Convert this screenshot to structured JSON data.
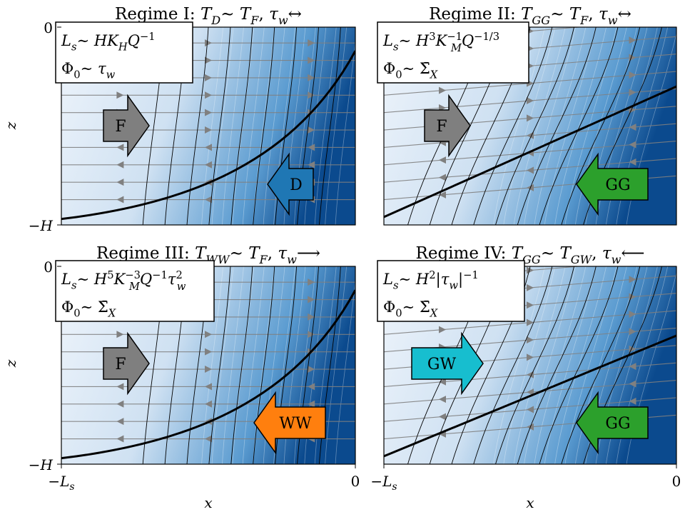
{
  "figure": {
    "ylabel": "z",
    "xlabel": "x",
    "ytick_top": "0",
    "ytick_bottom": "−H",
    "xtick_left": "−L",
    "xtick_left_sub": "s",
    "xtick_right": "0"
  },
  "colors": {
    "shade_light": "#eef4fb",
    "shade_dark": "#0b4a8e",
    "streamline": "#808080",
    "contour": "#000000",
    "interface": "#000000",
    "F": "#7f7f7f",
    "D": "#1f77b4",
    "GG": "#2ca02c",
    "WW": "#ff7f0e",
    "GW": "#17becf"
  },
  "panels": [
    {
      "title": "Regime I: T_D ∼ T_F, τ_w ↔",
      "title_parts": [
        {
          "t": "Regime I: "
        },
        {
          "t": "T",
          "i": true
        },
        {
          "t": "D",
          "sub": true,
          "i": true
        },
        {
          "t": " ∼ "
        },
        {
          "t": "T",
          "i": true
        },
        {
          "t": "F",
          "sub": true,
          "i": true
        },
        {
          "t": ", "
        },
        {
          "t": "τ",
          "i": true
        },
        {
          "t": "w",
          "sub": true,
          "i": true
        },
        {
          "t": " ↔"
        }
      ],
      "box_line1": "L_s ∼ H K_H Q^{-1}",
      "box_line1_parts": [
        {
          "t": "L",
          "i": true
        },
        {
          "t": "s",
          "sub": true,
          "i": true
        },
        {
          "t": " ∼ "
        },
        {
          "t": "HK",
          "i": true
        },
        {
          "t": "H",
          "sub": true,
          "i": true
        },
        {
          "t": "Q",
          "i": true
        },
        {
          "t": "−1",
          "sup": true
        }
      ],
      "box_line2": "Φ_0 ∼ τ_w",
      "box_line2_parts": [
        {
          "t": "Φ"
        },
        {
          "t": "0",
          "sub": true
        },
        {
          "t": " ∼ "
        },
        {
          "t": "τ",
          "i": true
        },
        {
          "t": "w",
          "sub": true,
          "i": true
        }
      ],
      "arrows": [
        {
          "label": "F",
          "dir": "right",
          "color": "F"
        },
        {
          "label": "D",
          "dir": "left",
          "color": "D"
        }
      ],
      "interface_depth_left": 0.97,
      "interface_depth_right": 0.12
    },
    {
      "title": "Regime II: T_GG ∼ T_F, τ_w ↔",
      "title_parts": [
        {
          "t": "Regime II: "
        },
        {
          "t": "T",
          "i": true
        },
        {
          "t": "GG",
          "sub": true,
          "i": true
        },
        {
          "t": " ∼ "
        },
        {
          "t": "T",
          "i": true
        },
        {
          "t": "F",
          "sub": true,
          "i": true
        },
        {
          "t": ", "
        },
        {
          "t": "τ",
          "i": true
        },
        {
          "t": "w",
          "sub": true,
          "i": true
        },
        {
          "t": " ↔"
        }
      ],
      "box_line1": "L_s ∼ H^3 K_M^{-1} Q^{-1/3}",
      "box_line1_parts": [
        {
          "t": "L",
          "i": true
        },
        {
          "t": "s",
          "sub": true,
          "i": true
        },
        {
          "t": " ∼ "
        },
        {
          "t": "H",
          "i": true
        },
        {
          "t": "3",
          "sup": true
        },
        {
          "t": "K",
          "i": true
        },
        {
          "t": "−1",
          "sup": true,
          "under": "M"
        },
        {
          "t": "Q",
          "i": true
        },
        {
          "t": "−1/3",
          "sup": true
        }
      ],
      "box_line2": "Φ_0 ∼ Σ̄_X",
      "box_line2_parts": [
        {
          "t": "Φ"
        },
        {
          "t": "0",
          "sub": true
        },
        {
          "t": " ∼ "
        },
        {
          "t": "Σ̄"
        },
        {
          "t": "X",
          "sub": true,
          "i": true
        }
      ],
      "arrows": [
        {
          "label": "F",
          "dir": "right",
          "color": "F"
        },
        {
          "label": "GG",
          "dir": "left",
          "color": "GG"
        }
      ],
      "interface_depth_left": 0.96,
      "interface_depth_right": 0.3
    },
    {
      "title": "Regime III: T_WW ∼ T_F, τ_w ⟶",
      "title_parts": [
        {
          "t": "Regime III: "
        },
        {
          "t": "T",
          "i": true
        },
        {
          "t": "WW",
          "sub": true,
          "i": true
        },
        {
          "t": " ∼ "
        },
        {
          "t": "T",
          "i": true
        },
        {
          "t": "F",
          "sub": true,
          "i": true
        },
        {
          "t": ", "
        },
        {
          "t": "τ",
          "i": true
        },
        {
          "t": "w",
          "sub": true,
          "i": true
        },
        {
          "t": " ⟶"
        }
      ],
      "box_line1": "L_s ∼ H^5 K_M^{-3} Q^{-1} τ_w^2",
      "box_line1_parts": [
        {
          "t": "L",
          "i": true
        },
        {
          "t": "s",
          "sub": true,
          "i": true
        },
        {
          "t": " ∼ "
        },
        {
          "t": "H",
          "i": true
        },
        {
          "t": "5",
          "sup": true
        },
        {
          "t": "K",
          "i": true
        },
        {
          "t": "−3",
          "sup": true,
          "under": "M"
        },
        {
          "t": "Q",
          "i": true
        },
        {
          "t": "−1",
          "sup": true
        },
        {
          "t": "τ",
          "i": true
        },
        {
          "t": "2",
          "sup": true,
          "under": "w"
        }
      ],
      "box_line2": "Φ_0 ∼ Σ̄_X",
      "box_line2_parts": [
        {
          "t": "Φ"
        },
        {
          "t": "0",
          "sub": true
        },
        {
          "t": " ∼ "
        },
        {
          "t": "Σ̄"
        },
        {
          "t": "X",
          "sub": true,
          "i": true
        }
      ],
      "arrows": [
        {
          "label": "F",
          "dir": "right",
          "color": "F"
        },
        {
          "label": "WW",
          "dir": "left",
          "color": "WW"
        }
      ],
      "interface_depth_left": 0.97,
      "interface_depth_right": 0.12
    },
    {
      "title": "Regime IV: T_GG ∼ T_GW, τ_w ⟵",
      "title_parts": [
        {
          "t": "Regime IV: "
        },
        {
          "t": "T",
          "i": true
        },
        {
          "t": "GG",
          "sub": true,
          "i": true
        },
        {
          "t": " ∼ "
        },
        {
          "t": "T",
          "i": true
        },
        {
          "t": "GW",
          "sub": true,
          "i": true
        },
        {
          "t": ", "
        },
        {
          "t": "τ",
          "i": true
        },
        {
          "t": "w",
          "sub": true,
          "i": true
        },
        {
          "t": " ⟵"
        }
      ],
      "box_line1": "L_s ∼ H^2 |τ_w|^{-1}",
      "box_line1_parts": [
        {
          "t": "L",
          "i": true
        },
        {
          "t": "s",
          "sub": true,
          "i": true
        },
        {
          "t": " ∼ "
        },
        {
          "t": "H",
          "i": true
        },
        {
          "t": "2",
          "sup": true
        },
        {
          "t": "|"
        },
        {
          "t": "τ",
          "i": true
        },
        {
          "t": "w",
          "sub": true,
          "i": true
        },
        {
          "t": "|"
        },
        {
          "t": "−1",
          "sup": true
        }
      ],
      "box_line2": "Φ_0 ∼ Σ̄_X",
      "box_line2_parts": [
        {
          "t": "Φ"
        },
        {
          "t": "0",
          "sub": true
        },
        {
          "t": " ∼ "
        },
        {
          "t": "Σ̄"
        },
        {
          "t": "X",
          "sub": true,
          "i": true
        }
      ],
      "arrows": [
        {
          "label": "GW",
          "dir": "right",
          "color": "GW"
        },
        {
          "label": "GG",
          "dir": "left",
          "color": "GG"
        }
      ],
      "interface_depth_left": 0.96,
      "interface_depth_right": 0.35
    }
  ],
  "chart_data": {
    "type": "heatmap",
    "panel_count": 4,
    "layout": "2x2",
    "x_axis": {
      "label": "x",
      "range": [
        "−L_s",
        "0"
      ]
    },
    "y_axis": {
      "label": "z",
      "range": [
        "−H",
        "0"
      ]
    },
    "interface_curves": [
      {
        "panel": "Regime I",
        "z_at_x_minus_Ls": 0.97,
        "z_at_x_0": 0.12,
        "unit": "fraction of H below surface"
      },
      {
        "panel": "Regime II",
        "z_at_x_minus_Ls": 0.96,
        "z_at_x_0": 0.3,
        "unit": "fraction of H below surface"
      },
      {
        "panel": "Regime III",
        "z_at_x_minus_Ls": 0.97,
        "z_at_x_0": 0.12,
        "unit": "fraction of H below surface"
      },
      {
        "panel": "Regime IV",
        "z_at_x_minus_Ls": 0.96,
        "z_at_x_0": 0.35,
        "unit": "fraction of H below surface"
      }
    ],
    "flux_arrows": [
      {
        "panel": "Regime I",
        "labels": [
          "F",
          "D"
        ]
      },
      {
        "panel": "Regime II",
        "labels": [
          "F",
          "GG"
        ]
      },
      {
        "panel": "Regime III",
        "labels": [
          "F",
          "WW"
        ]
      },
      {
        "panel": "Regime IV",
        "labels": [
          "GW",
          "GG"
        ]
      }
    ]
  }
}
